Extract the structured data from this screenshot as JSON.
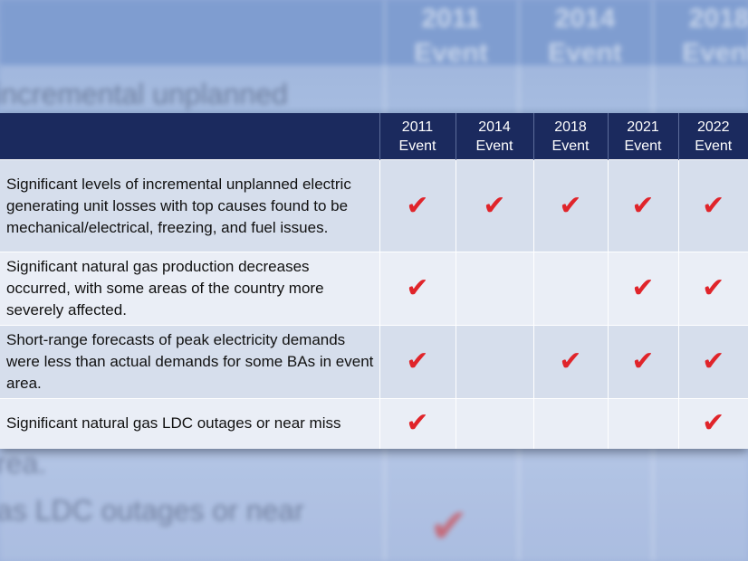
{
  "columns": [
    {
      "year": "2011",
      "label": "Event"
    },
    {
      "year": "2014",
      "label": "Event"
    },
    {
      "year": "2018",
      "label": "Event"
    },
    {
      "year": "2021",
      "label": "Event"
    },
    {
      "year": "2022",
      "label": "Event"
    }
  ],
  "rows": [
    {
      "description": "Significant levels of incremental unplanned electric generating unit losses with top causes found to be mechanical/electrical, freezing, and fuel issues.",
      "checks": [
        true,
        true,
        true,
        true,
        true
      ]
    },
    {
      "description": "Significant natural gas production decreases occurred, with some areas of the country more severely affected.",
      "checks": [
        true,
        false,
        false,
        true,
        true
      ]
    },
    {
      "description": "Short-range forecasts of peak electricity demands were less than actual demands for some BAs in event area.",
      "checks": [
        true,
        false,
        true,
        true,
        true
      ]
    },
    {
      "description": "Significant natural gas LDC outages or near miss",
      "checks": [
        true,
        false,
        false,
        false,
        true
      ]
    }
  ],
  "check_symbol": "✔",
  "check_icon": "checkmark-icon",
  "background": {
    "head_columns": [
      {
        "year": "2011",
        "label": "Event"
      },
      {
        "year": "2014",
        "label": "Event"
      },
      {
        "year": "2018",
        "label": "Event"
      }
    ],
    "text_top": "incremental unplanned",
    "text_mid": "rea.",
    "text_bottom": "as LDC outages or near"
  },
  "colors": {
    "header_bg": "#1b2a5e",
    "row_odd": "#d6deec",
    "row_even": "#eaeef6",
    "check": "#e0242a"
  }
}
